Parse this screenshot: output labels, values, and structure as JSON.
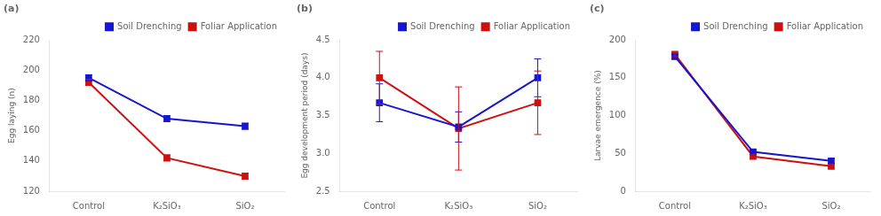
{
  "chart_data": [
    {
      "type": "line",
      "title": "(a)",
      "ylabel": "Egg laying (n)",
      "categories": [
        "Control",
        "K₂SiO₃",
        "SiO₂"
      ],
      "series": [
        {
          "name": "Soil Drenching",
          "color": "#1616d0",
          "marker": "square",
          "values": [
            195,
            168,
            163
          ],
          "errors": [
            2,
            2,
            2
          ]
        },
        {
          "name": "Foliar Application",
          "color": "#cc1111",
          "marker": "square",
          "values": [
            192,
            142,
            130
          ],
          "errors": [
            2,
            2,
            2
          ]
        }
      ],
      "ylim": [
        120,
        220
      ],
      "yticks": [
        120,
        140,
        160,
        180,
        200,
        220
      ],
      "grid": false,
      "legend": "top"
    },
    {
      "type": "line",
      "title": "(b)",
      "ylabel": "Egg development period (days)",
      "categories": [
        "Control",
        "K₂SiO₃",
        "SiO₂"
      ],
      "series": [
        {
          "name": "Soil Drenching",
          "color": "#1616d0",
          "marker": "square",
          "values": [
            3.67,
            3.35,
            4.0
          ],
          "errors": [
            0.25,
            0.2,
            0.25
          ]
        },
        {
          "name": "Foliar Application",
          "color": "#cc1111",
          "marker": "square",
          "values": [
            4.0,
            3.33,
            3.67
          ],
          "errors": [
            0.35,
            0.55,
            0.42
          ]
        }
      ],
      "ylim": [
        2.5,
        4.5
      ],
      "yticks": [
        2.5,
        {
          "value": 3.0,
          "label": "3.0"
        },
        3.5,
        {
          "value": 4.0,
          "label": "4.0"
        },
        4.5
      ],
      "grid": false,
      "legend": "top"
    },
    {
      "type": "line",
      "title": "(c)",
      "ylabel": "Larvae emergence (%)",
      "categories": [
        "Control",
        "K₂SiO₃",
        "SiO₂"
      ],
      "series": [
        {
          "name": "Soil Drenching",
          "color": "#1616d0",
          "marker": "square",
          "values": [
            178,
            52,
            40
          ],
          "errors": [
            3,
            3,
            3
          ]
        },
        {
          "name": "Foliar Application",
          "color": "#cc1111",
          "marker": "square",
          "values": [
            181,
            46,
            33
          ],
          "errors": [
            3,
            3,
            3
          ]
        }
      ],
      "ylim": [
        0,
        200
      ],
      "yticks": [
        0,
        50,
        100,
        150,
        200
      ],
      "grid": false,
      "legend": "top"
    }
  ]
}
